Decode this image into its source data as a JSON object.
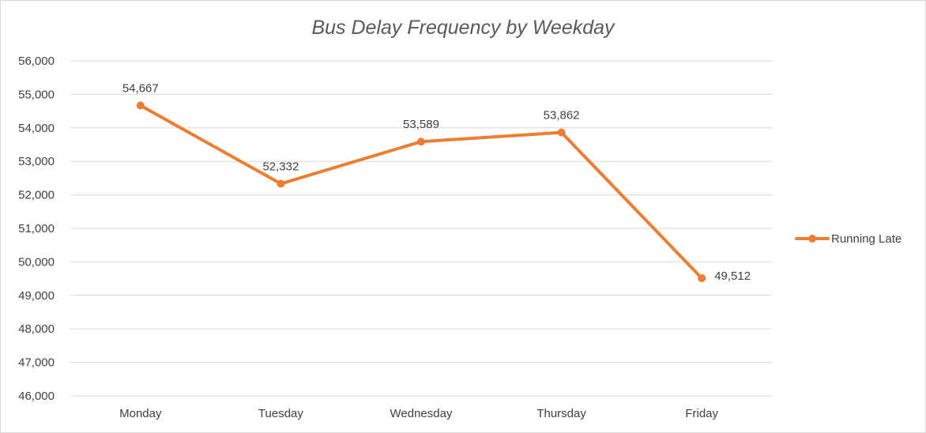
{
  "chart_data": {
    "type": "line",
    "title": "Bus Delay Frequency by Weekday",
    "xlabel": "",
    "ylabel": "",
    "categories": [
      "Monday",
      "Tuesday",
      "Wednesday",
      "Thursday",
      "Friday"
    ],
    "series": [
      {
        "name": "Running Late",
        "values": [
          54667,
          52332,
          53589,
          53862,
          49512
        ],
        "color": "#ED7D31",
        "data_labels": [
          "54,667",
          "52,332",
          "53,589",
          "53,862",
          "49,512"
        ]
      }
    ],
    "ylim": [
      46000,
      56000
    ],
    "yticks": [
      46000,
      47000,
      48000,
      49000,
      50000,
      51000,
      52000,
      53000,
      54000,
      55000,
      56000
    ],
    "ytick_labels": [
      "46,000",
      "47,000",
      "48,000",
      "49,000",
      "50,000",
      "51,000",
      "52,000",
      "53,000",
      "54,000",
      "55,000",
      "56,000"
    ],
    "grid": true,
    "legend_position": "right",
    "colors": {
      "gridline": "#d9d9d9",
      "text": "#404040",
      "title": "#595959"
    }
  }
}
